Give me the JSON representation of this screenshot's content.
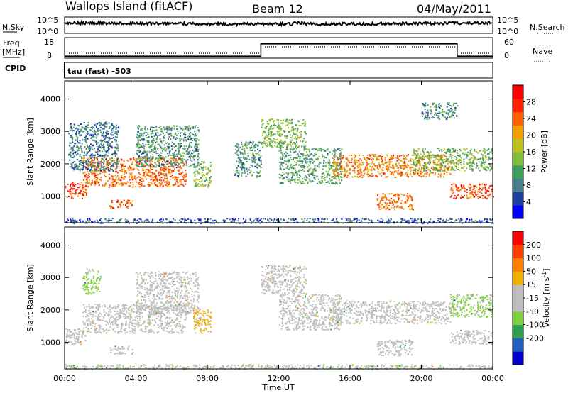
{
  "header": {
    "station": "Wallops Island (fitACF)",
    "beam": "Beam 12",
    "date": "04/May/2011"
  },
  "noise_panel": {
    "left_label": "N.Sky",
    "right_label": "N.Search",
    "tick_top": "10^5",
    "tick_bottom": "10^0"
  },
  "freq_panel": {
    "left_label_line1": "Freq.",
    "left_label_line2": "[MHz]",
    "left_ticks": [
      "18",
      "8"
    ],
    "right_ticks": [
      "60",
      "0"
    ],
    "right_label": "Nave",
    "cpid_label": "CPID"
  },
  "cpid_panel": {
    "program": "tau (fast) -503"
  },
  "colors": {
    "power_scale": [
      "#0000ff",
      "#1f3f9f",
      "#4a7f8f",
      "#3f9f5f",
      "#7fbf3f",
      "#bfbf20",
      "#f0a000",
      "#ff6000",
      "#ff2000",
      "#ff0000"
    ],
    "velocity_scale": [
      "#0000d0",
      "#205fbf",
      "#2f9f4f",
      "#7fcf3f",
      "#bebebe",
      "#bebebe",
      "#f0b000",
      "#ff8000",
      "#ff4000",
      "#ff0000"
    ]
  },
  "chart_data": [
    {
      "type": "heatmap",
      "name": "power",
      "ylabel": "Slant Range [km]",
      "ylim": [
        180,
        4560
      ],
      "xlim_hours": [
        0,
        24
      ],
      "yticks": [
        "1000",
        "2000",
        "3000",
        "4000"
      ],
      "colorbar_label": "Power [dB]",
      "colorbar_ticks": [
        "4",
        "8",
        "12",
        "16",
        "20",
        "24",
        "28"
      ],
      "colorbar_range": [
        0,
        32
      ],
      "bands": [
        {
          "t0": 0.0,
          "t1": 1.2,
          "r0": 950,
          "r1": 1450,
          "value": 26
        },
        {
          "t0": 1.0,
          "t1": 6.8,
          "r0": 1300,
          "r1": 2200,
          "value": 24
        },
        {
          "t0": 2.5,
          "t1": 3.8,
          "r0": 650,
          "r1": 900,
          "value": 25
        },
        {
          "t0": 0.2,
          "t1": 3.0,
          "r0": 1800,
          "r1": 3300,
          "value": 8
        },
        {
          "t0": 4.0,
          "t1": 7.5,
          "r0": 1900,
          "r1": 3200,
          "value": 10
        },
        {
          "t0": 7.2,
          "t1": 8.2,
          "r0": 1300,
          "r1": 2100,
          "value": 14
        },
        {
          "t0": 9.5,
          "t1": 11.0,
          "r0": 1600,
          "r1": 2700,
          "value": 10
        },
        {
          "t0": 11.0,
          "t1": 13.5,
          "r0": 2500,
          "r1": 3400,
          "value": 14
        },
        {
          "t0": 12.0,
          "t1": 15.5,
          "r0": 1400,
          "r1": 2500,
          "value": 11
        },
        {
          "t0": 15.0,
          "t1": 21.6,
          "r0": 1600,
          "r1": 2300,
          "value": 22
        },
        {
          "t0": 17.5,
          "t1": 19.5,
          "r0": 600,
          "r1": 1100,
          "value": 23
        },
        {
          "t0": 19.5,
          "t1": 24.0,
          "r0": 1800,
          "r1": 2500,
          "value": 14
        },
        {
          "t0": 21.6,
          "t1": 24.0,
          "r0": 950,
          "r1": 1400,
          "value": 26
        },
        {
          "t0": 20.0,
          "t1": 22.0,
          "r0": 3400,
          "r1": 3900,
          "value": 9
        },
        {
          "t0": 0.0,
          "t1": 24.0,
          "r0": 180,
          "r1": 330,
          "value": 6
        }
      ]
    },
    {
      "type": "heatmap",
      "name": "velocity",
      "ylabel": "Slant Range [km]",
      "ylim": [
        180,
        4560
      ],
      "xlim_hours": [
        0,
        24
      ],
      "yticks": [
        "1000",
        "2000",
        "3000",
        "4000"
      ],
      "colorbar_label": "Velocity [m s^-1]",
      "colorbar_ticks": [
        "200",
        "100",
        "50",
        "15",
        "-15",
        "-50",
        "-100",
        "-200"
      ],
      "colorbar_range": [
        -250,
        250
      ],
      "bands": [
        {
          "t0": 0.0,
          "t1": 1.2,
          "r0": 950,
          "r1": 1450,
          "value": 0
        },
        {
          "t0": 1.0,
          "t1": 6.8,
          "r0": 1300,
          "r1": 2200,
          "value": 0
        },
        {
          "t0": 2.5,
          "t1": 3.8,
          "r0": 650,
          "r1": 900,
          "value": 0
        },
        {
          "t0": 4.0,
          "t1": 7.5,
          "r0": 1900,
          "r1": 3200,
          "value": 0
        },
        {
          "t0": 1.0,
          "t1": 2.0,
          "r0": 2500,
          "r1": 3300,
          "value": -60
        },
        {
          "t0": 7.2,
          "t1": 8.2,
          "r0": 1300,
          "r1": 2100,
          "value": 60
        },
        {
          "t0": 11.0,
          "t1": 13.5,
          "r0": 2500,
          "r1": 3400,
          "value": 0
        },
        {
          "t0": 12.0,
          "t1": 15.5,
          "r0": 1400,
          "r1": 2500,
          "value": 0
        },
        {
          "t0": 15.0,
          "t1": 21.6,
          "r0": 1600,
          "r1": 2300,
          "value": 0
        },
        {
          "t0": 17.5,
          "t1": 19.5,
          "r0": 600,
          "r1": 1100,
          "value": 0
        },
        {
          "t0": 21.6,
          "t1": 24.0,
          "r0": 1800,
          "r1": 2500,
          "value": -60
        },
        {
          "t0": 21.6,
          "t1": 24.0,
          "r0": 950,
          "r1": 1400,
          "value": 0
        },
        {
          "t0": 0.0,
          "t1": 24.0,
          "r0": 180,
          "r1": 330,
          "value": -40
        }
      ]
    }
  ],
  "x_axis": {
    "label": "Time UT",
    "ticks": [
      "00:00",
      "04:00",
      "08:00",
      "12:00",
      "16:00",
      "20:00",
      "00:00"
    ]
  },
  "frequency_series": {
    "hours": [
      0,
      11.0,
      11.0,
      22.0,
      22.0,
      24.0
    ],
    "mhz": [
      10,
      10,
      16,
      16,
      10,
      10
    ]
  }
}
